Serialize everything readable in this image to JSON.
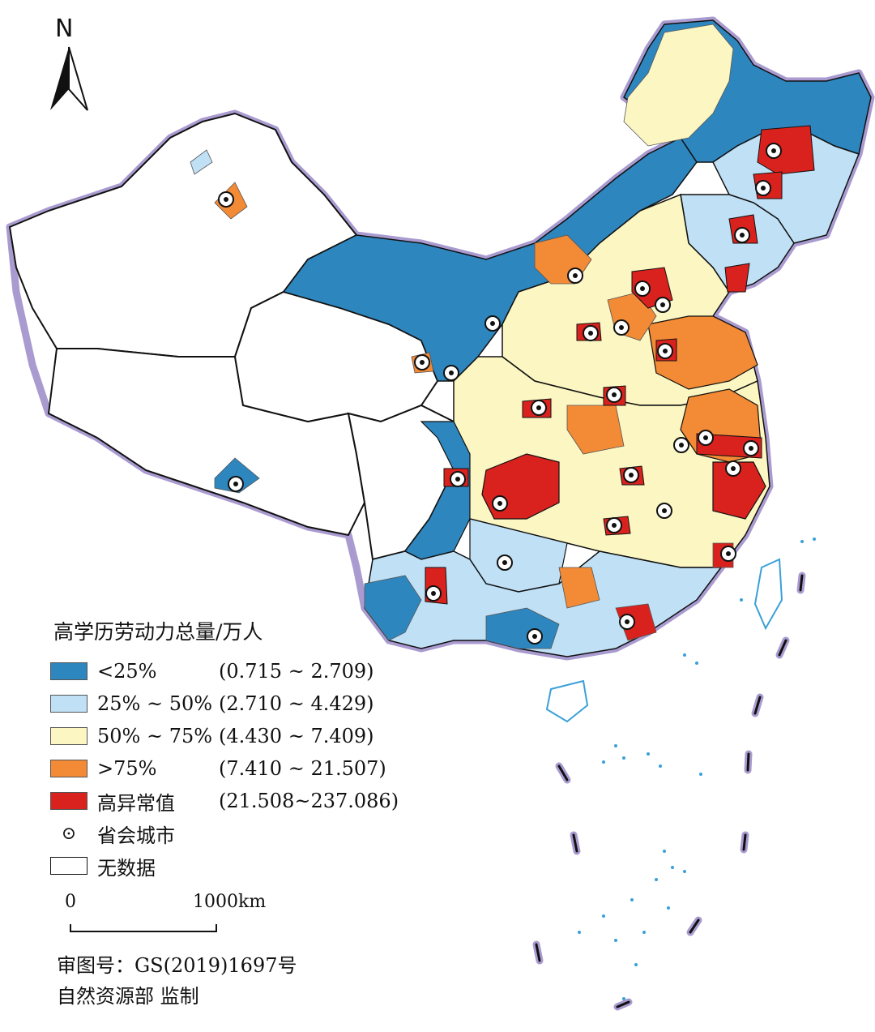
{
  "map": {
    "north_label": "N",
    "legend": {
      "title": "高学历劳动力总量/万人",
      "classes": [
        {
          "label": "<25%",
          "range": "(0.715 ~ 2.709)",
          "color": "#2e86be"
        },
        {
          "label": "25% ~ 50%",
          "range": "(2.710 ~ 4.429)",
          "color": "#bfe0f5"
        },
        {
          "label": "50% ~ 75%",
          "range": "(4.430 ~ 7.409)",
          "color": "#fbf6c2"
        },
        {
          "label": ">75%",
          "range": "(7.410 ~ 21.507)",
          "color": "#f28a36"
        },
        {
          "label": "高异常值",
          "range": "(21.508~237.086)",
          "color": "#d9221e"
        }
      ],
      "capital_label": "省会城市",
      "nodata_label": "无数据"
    },
    "scale_bar": {
      "start": "0",
      "end": "1000km"
    },
    "notes": {
      "approval": "审图号：GS(2019)1697号",
      "supervisor": "自然资源部 监制"
    },
    "colors": {
      "border_halo": "#a99bd0",
      "outline": "#111111",
      "island": "#3aa0d8"
    }
  }
}
